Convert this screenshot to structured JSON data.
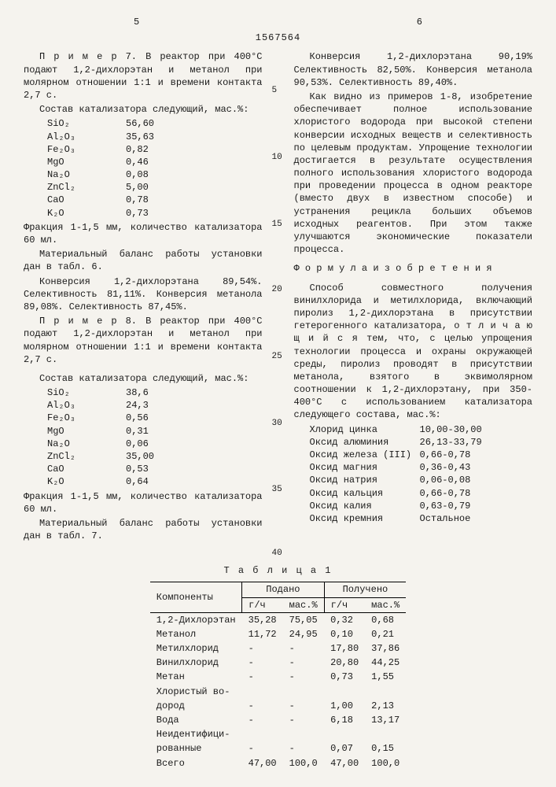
{
  "patent": "1567564",
  "pageL": "5",
  "pageR": "6",
  "left": {
    "ex7a": "П р и м е р  7. В реактор при 400°С подают 1,2-дихлорэтан и метанол при молярном отношении 1:1 и времени контакта 2,7 с.",
    "cat_hdr": "Состав катализатора следующий, мас.%:",
    "cat7": [
      [
        "SiO₂",
        "56,60"
      ],
      [
        "Al₂O₃",
        "35,63"
      ],
      [
        "Fe₂O₃",
        "0,82"
      ],
      [
        "MgO",
        "0,46"
      ],
      [
        "Na₂O",
        "0,08"
      ],
      [
        "ZnCl₂",
        "5,00"
      ],
      [
        "CaO",
        "0,78"
      ],
      [
        "K₂O",
        "0,73"
      ]
    ],
    "frac": "Фракция 1-1,5 мм, количество катализатора 60 мл.",
    "mat6": "Материальный баланс работы установки дан в табл. 6.",
    "conv7": "Конверсия  1,2-дихлорэтана 89,54%. Селективность 81,11%. Конверсия метанола 89,08%. Селективность 87,45%.",
    "ex8": "П р и м е р  8. В реактор при 400°С подают 1,2-дихлорэтан и метанол при молярном отношении 1:1 и времени контакта 2,7 с.",
    "cat8": [
      [
        "SiO₂",
        "38,6"
      ],
      [
        "Al₂O₃",
        "24,3"
      ],
      [
        "Fe₂O₃",
        "0,56"
      ],
      [
        "MgO",
        "0,31"
      ],
      [
        "Na₂O",
        "0,06"
      ],
      [
        "ZnCl₂",
        "35,00"
      ],
      [
        "CaO",
        "0,53"
      ],
      [
        "K₂O",
        "0,64"
      ]
    ],
    "mat7": "Материальный баланс работы установки дан в табл. 7."
  },
  "right": {
    "conv8": "Конверсия 1,2-дихлорэтана 90,19% Селективность 82,50%. Конверсия метанола 90,53%. Селективность 89,40%.",
    "summary": "Как видно из примеров 1-8, изобретение обеспечивает полное использование хлористого водорода при высокой степени конверсии исходных веществ и селективность по целевым продуктам. Упрощение технологии достигается в результате осуществления полного использования хлористого водорода при проведении процесса в одном реакторе (вместо двух в известном способе) и устранения рецикла больших объемов исходных реагентов. При этом также улучшаются экономические показатели процесса.",
    "formula_hdr": "Ф о р м у л а   и з о б р е т е н и я",
    "claim": "Способ совместного получения винилхлорида и метилхлорида, включающий пиролиз 1,2-дихлорэтана в присутствии гетерогенного катализатора,  о т л и ч а ю щ и й с я  тем, что, с целью упрощения технологии процесса и охраны окружающей среды, пиролиз проводят в присутствии метанола, взятого в эквимолярном соотношении к 1,2-дихлорэтану, при 350-400°С с использованием катализатора следующего состава, мас.%:",
    "comp": [
      [
        "Хлорид цинка",
        "10,00-30,00"
      ],
      [
        "Оксид алюминия",
        "26,13-33,79"
      ],
      [
        "Оксид железа (III)",
        "0,66-0,78"
      ],
      [
        "Оксид магния",
        "0,36-0,43"
      ],
      [
        "Оксид натрия",
        "0,06-0,08"
      ],
      [
        "Оксид кальция",
        "0,66-0,78"
      ],
      [
        "Оксид калия",
        "0,63-0,79"
      ],
      [
        "Оксид кремния",
        "Остальное"
      ]
    ]
  },
  "table_title": "Т а б л и ц а  1",
  "table": {
    "h1": "Компоненты",
    "h2": "Подано",
    "h3": "Получено",
    "h2a": "г/ч",
    "h2b": "мас.%",
    "h3a": "г/ч",
    "h3b": "мас.%",
    "rows": [
      [
        "1,2-Дихлорэтан",
        "35,28",
        "75,05",
        "0,32",
        "0,68"
      ],
      [
        "Метанол",
        "11,72",
        "24,95",
        "0,10",
        "0,21"
      ],
      [
        "Метилхлорид",
        "-",
        "-",
        "17,80",
        "37,86"
      ],
      [
        "Винилхлорид",
        "-",
        "-",
        "20,80",
        "44,25"
      ],
      [
        "Метан",
        "-",
        "-",
        "0,73",
        "1,55"
      ],
      [
        "Хлористый во-",
        "",
        "",
        "",
        ""
      ],
      [
        "дород",
        "-",
        "-",
        "1,00",
        "2,13"
      ],
      [
        "Вода",
        "-",
        "-",
        "6,18",
        "13,17"
      ],
      [
        "Неидентифици-",
        "",
        "",
        "",
        ""
      ],
      [
        "рованные",
        "-",
        "-",
        "0,07",
        "0,15"
      ],
      [
        "Всего",
        "47,00",
        "100,0",
        "47,00",
        "100,0"
      ]
    ]
  },
  "lnums": [
    "5",
    "10",
    "15",
    "20",
    "25",
    "30",
    "35",
    "40"
  ]
}
